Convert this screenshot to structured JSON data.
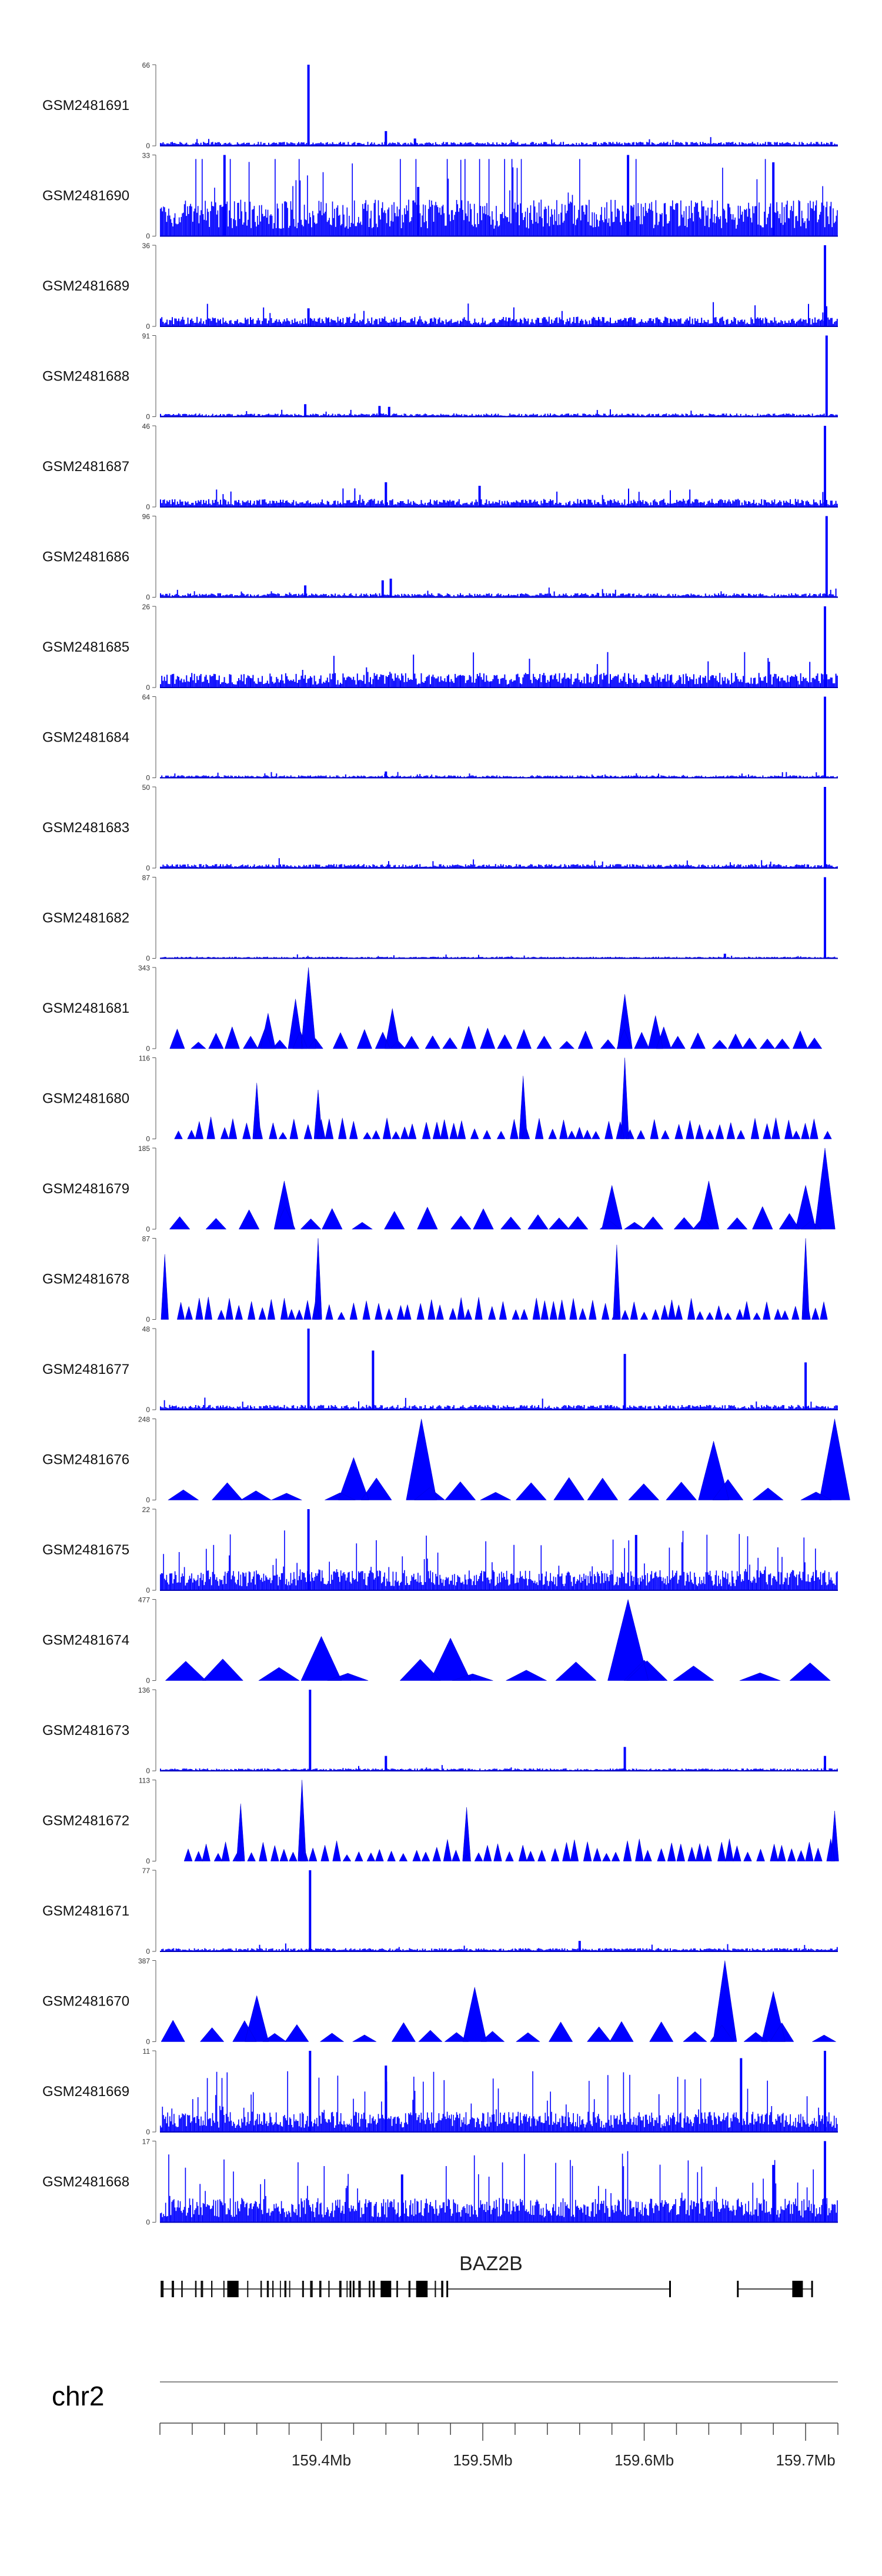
{
  "chart_data": {
    "type": "area",
    "chromosome": "chr2",
    "xlim": [
      159300000,
      159720000
    ],
    "gene": {
      "name": "BAZ2B",
      "blocks": [
        {
          "start": 159301000,
          "end": 159418000
        },
        {
          "start": 159420000,
          "end": 159475000
        },
        {
          "start": 159478000,
          "end": 159616000
        },
        {
          "start": 159658000,
          "end": 159704000
        }
      ]
    },
    "x_ticks": [
      159400000,
      159500000,
      159600000,
      159700000
    ],
    "x_tick_labels": [
      "159.4Mb",
      "159.5Mb",
      "159.6Mb",
      "159.7Mb"
    ],
    "series": [
      {
        "name": "GSM2481691",
        "ymax": 66,
        "style": "spiky",
        "baseline": 0.05,
        "peaks": [
          {
            "x": 159392000,
            "y": 66
          },
          {
            "x": 159440000,
            "y": 12
          },
          {
            "x": 159458000,
            "y": 6
          }
        ]
      },
      {
        "name": "GSM2481690",
        "ymax": 33,
        "style": "dense",
        "baseline": 0.45,
        "peaks": [
          {
            "x": 159340000,
            "y": 33
          },
          {
            "x": 159460000,
            "y": 20
          },
          {
            "x": 159590000,
            "y": 33
          },
          {
            "x": 159680000,
            "y": 30
          }
        ]
      },
      {
        "name": "GSM2481689",
        "ymax": 36,
        "style": "spiky",
        "baseline": 0.12,
        "peaks": [
          {
            "x": 159712000,
            "y": 36
          },
          {
            "x": 159392000,
            "y": 8
          }
        ]
      },
      {
        "name": "GSM2481688",
        "ymax": 91,
        "style": "spiky",
        "baseline": 0.04,
        "peaks": [
          {
            "x": 159713000,
            "y": 91
          },
          {
            "x": 159390000,
            "y": 14
          },
          {
            "x": 159436000,
            "y": 12
          },
          {
            "x": 159442000,
            "y": 11
          }
        ]
      },
      {
        "name": "GSM2481687",
        "ymax": 46,
        "style": "spiky",
        "baseline": 0.1,
        "peaks": [
          {
            "x": 159712000,
            "y": 46
          },
          {
            "x": 159440000,
            "y": 14
          },
          {
            "x": 159498000,
            "y": 12
          }
        ]
      },
      {
        "name": "GSM2481686",
        "ymax": 96,
        "style": "spiky",
        "baseline": 0.05,
        "peaks": [
          {
            "x": 159713000,
            "y": 96
          },
          {
            "x": 159390000,
            "y": 14
          },
          {
            "x": 159438000,
            "y": 20
          },
          {
            "x": 159443000,
            "y": 22
          }
        ]
      },
      {
        "name": "GSM2481685",
        "ymax": 26,
        "style": "spiky",
        "baseline": 0.18,
        "peaks": [
          {
            "x": 159712000,
            "y": 26
          }
        ]
      },
      {
        "name": "GSM2481684",
        "ymax": 64,
        "style": "spiky",
        "baseline": 0.03,
        "peaks": [
          {
            "x": 159712000,
            "y": 64
          },
          {
            "x": 159440000,
            "y": 5
          }
        ]
      },
      {
        "name": "GSM2481683",
        "ymax": 50,
        "style": "spiky",
        "baseline": 0.05,
        "peaks": [
          {
            "x": 159712000,
            "y": 50
          }
        ]
      },
      {
        "name": "GSM2481682",
        "ymax": 87,
        "style": "spiky",
        "baseline": 0.02,
        "peaks": [
          {
            "x": 159712000,
            "y": 87
          },
          {
            "x": 159650000,
            "y": 5
          }
        ]
      },
      {
        "name": "GSM2481681",
        "ymax": 343,
        "style": "triangles",
        "width": 0.022,
        "peaks": [
          {
            "x": 159392000,
            "y": 343
          },
          {
            "x": 159384000,
            "y": 210
          },
          {
            "x": 159367000,
            "y": 150
          },
          {
            "x": 159444000,
            "y": 170
          },
          {
            "x": 159588000,
            "y": 230
          },
          {
            "x": 159607000,
            "y": 140
          }
        ]
      },
      {
        "name": "GSM2481680",
        "ymax": 116,
        "style": "triangles",
        "width": 0.012,
        "peaks": [
          {
            "x": 159588000,
            "y": 116
          },
          {
            "x": 159525000,
            "y": 90
          },
          {
            "x": 159360000,
            "y": 80
          },
          {
            "x": 159398000,
            "y": 70
          }
        ]
      },
      {
        "name": "GSM2481679",
        "ymax": 185,
        "style": "triangles",
        "width": 0.03,
        "peaks": [
          {
            "x": 159712000,
            "y": 185
          },
          {
            "x": 159377000,
            "y": 110
          },
          {
            "x": 159580000,
            "y": 100
          },
          {
            "x": 159640000,
            "y": 110
          },
          {
            "x": 159700000,
            "y": 100
          }
        ]
      },
      {
        "name": "GSM2481678",
        "ymax": 87,
        "style": "triangles",
        "width": 0.011,
        "peaks": [
          {
            "x": 159398000,
            "y": 87
          },
          {
            "x": 159583000,
            "y": 80
          },
          {
            "x": 159700000,
            "y": 87
          },
          {
            "x": 159303000,
            "y": 70
          }
        ]
      },
      {
        "name": "GSM2481677",
        "ymax": 48,
        "style": "spiky",
        "baseline": 0.06,
        "peaks": [
          {
            "x": 159392000,
            "y": 48
          },
          {
            "x": 159432000,
            "y": 35
          },
          {
            "x": 159588000,
            "y": 33
          },
          {
            "x": 159700000,
            "y": 28
          }
        ]
      },
      {
        "name": "GSM2481676",
        "ymax": 248,
        "style": "triangles",
        "width": 0.045,
        "peaks": [
          {
            "x": 159462000,
            "y": 248
          },
          {
            "x": 159420000,
            "y": 130
          },
          {
            "x": 159643000,
            "y": 180
          },
          {
            "x": 159718000,
            "y": 248
          }
        ]
      },
      {
        "name": "GSM2481675",
        "ymax": 22,
        "style": "dense",
        "baseline": 0.25,
        "peaks": [
          {
            "x": 159392000,
            "y": 22
          },
          {
            "x": 159595000,
            "y": 15
          }
        ]
      },
      {
        "name": "GSM2481674",
        "ymax": 477,
        "style": "triangles",
        "width": 0.06,
        "peaks": [
          {
            "x": 159590000,
            "y": 477
          },
          {
            "x": 159480000,
            "y": 250
          },
          {
            "x": 159400000,
            "y": 260
          },
          {
            "x": 159600000,
            "y": 120
          }
        ]
      },
      {
        "name": "GSM2481673",
        "ymax": 136,
        "style": "spiky",
        "baseline": 0.03,
        "peaks": [
          {
            "x": 159393000,
            "y": 136
          },
          {
            "x": 159440000,
            "y": 25
          },
          {
            "x": 159588000,
            "y": 40
          },
          {
            "x": 159712000,
            "y": 25
          }
        ]
      },
      {
        "name": "GSM2481672",
        "ymax": 113,
        "style": "triangles",
        "width": 0.012,
        "peaks": [
          {
            "x": 159388000,
            "y": 113
          },
          {
            "x": 159350000,
            "y": 80
          },
          {
            "x": 159490000,
            "y": 75
          },
          {
            "x": 159718000,
            "y": 70
          }
        ]
      },
      {
        "name": "GSM2481671",
        "ymax": 77,
        "style": "spiky",
        "baseline": 0.04,
        "peaks": [
          {
            "x": 159393000,
            "y": 77
          },
          {
            "x": 159560000,
            "y": 10
          }
        ]
      },
      {
        "name": "GSM2481670",
        "ymax": 387,
        "style": "triangles",
        "width": 0.035,
        "peaks": [
          {
            "x": 159650000,
            "y": 387
          },
          {
            "x": 159495000,
            "y": 260
          },
          {
            "x": 159360000,
            "y": 220
          },
          {
            "x": 159680000,
            "y": 240
          }
        ]
      },
      {
        "name": "GSM2481669",
        "ymax": 11,
        "style": "dense",
        "baseline": 0.25,
        "peaks": [
          {
            "x": 159393000,
            "y": 11
          },
          {
            "x": 159440000,
            "y": 9
          },
          {
            "x": 159660000,
            "y": 10
          },
          {
            "x": 159712000,
            "y": 11
          }
        ]
      },
      {
        "name": "GSM2481668",
        "ymax": 17,
        "style": "dense",
        "baseline": 0.3,
        "peaks": [
          {
            "x": 159712000,
            "y": 17
          },
          {
            "x": 159680000,
            "y": 12
          },
          {
            "x": 159450000,
            "y": 10
          }
        ]
      }
    ]
  }
}
